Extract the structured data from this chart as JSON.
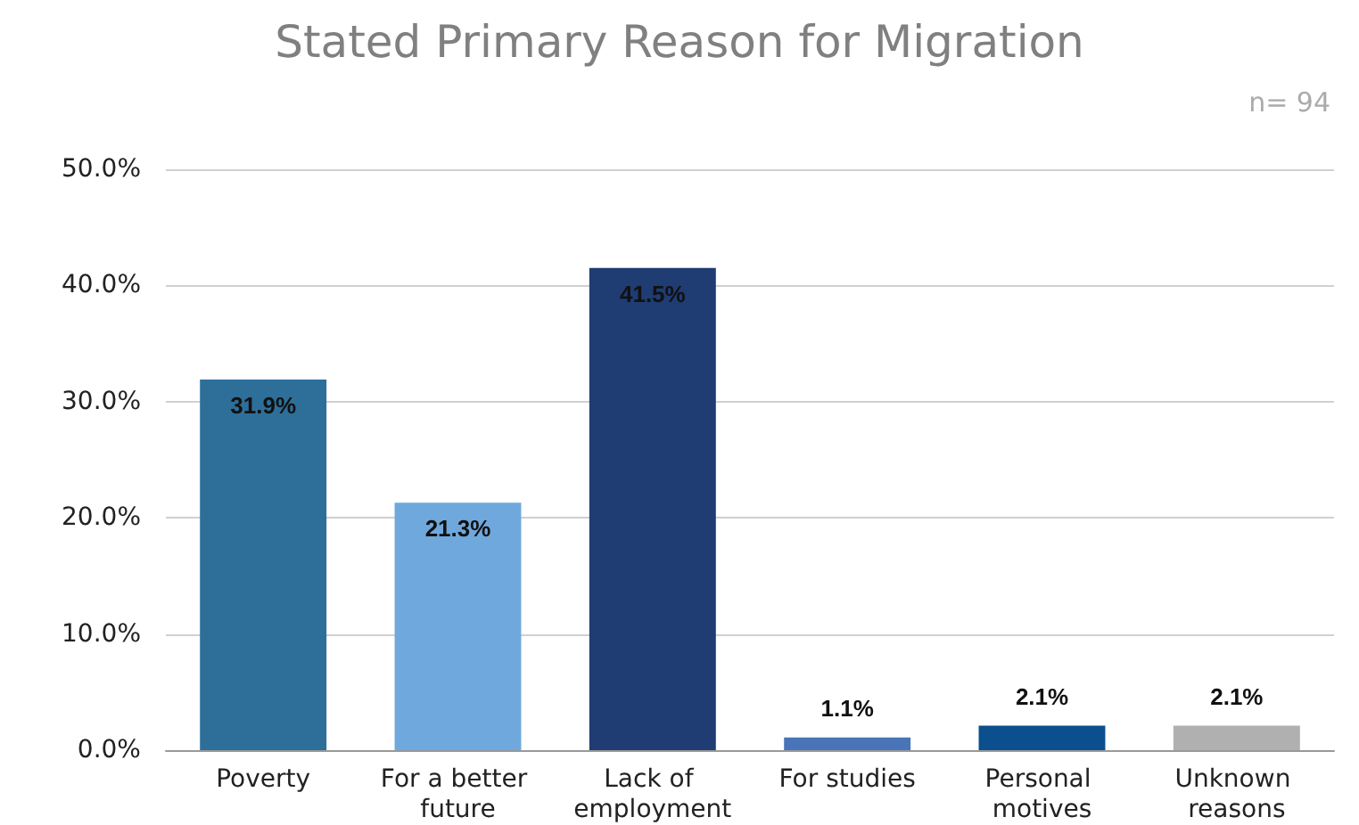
{
  "chart_data": {
    "type": "bar",
    "title": "Stated Primary Reason for Migration",
    "annotations": [
      "n= 94"
    ],
    "categories": [
      "Poverty",
      "For a better future",
      "Lack of employment",
      "For studies",
      "Personal motives",
      "Unknown reasons"
    ],
    "values": [
      31.9,
      21.3,
      41.5,
      1.1,
      2.1,
      2.1
    ],
    "colors": [
      "#2e6f9a",
      "#6fa8dc",
      "#1f3c73",
      "#4a74b8",
      "#0b4f8f",
      "#b0b0b0"
    ],
    "value_labels": [
      "31.9%",
      "21.3%",
      "41.5%",
      "1.1%",
      "2.1%",
      "2.1%"
    ],
    "ylim": [
      0,
      50
    ],
    "yticks": [
      {
        "value": 0,
        "label": "0.0%"
      },
      {
        "value": 10,
        "label": "10.0%"
      },
      {
        "value": 20,
        "label": "20.0%"
      },
      {
        "value": 30,
        "label": "30.0%"
      },
      {
        "value": 40,
        "label": "40.0%"
      },
      {
        "value": 50,
        "label": "50.0%"
      }
    ],
    "grid": "y"
  }
}
